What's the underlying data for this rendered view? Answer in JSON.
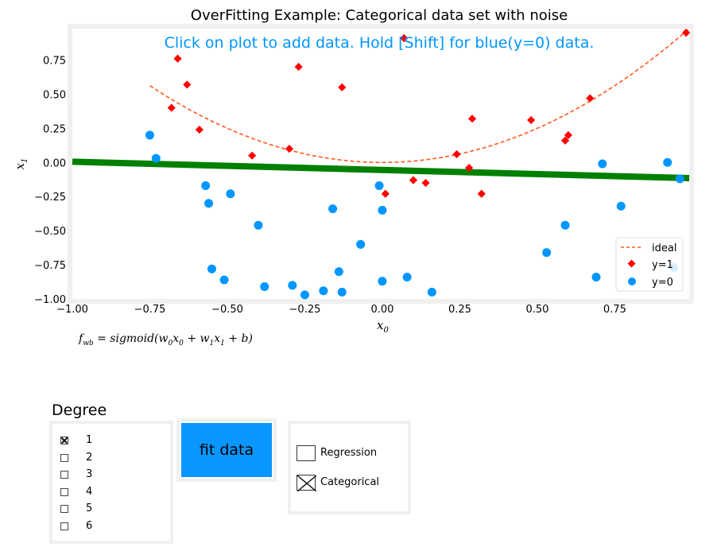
{
  "chart_data": {
    "type": "scatter",
    "title": "OverFitting Example: Categorical data set with noise",
    "instruction": "Click on plot to add data. Hold [Shift] for blue(y=0) data.",
    "xlabel": "x",
    "xlabel_sub": "0",
    "ylabel": "x",
    "ylabel_sub": "1",
    "xlim": [
      -1.0,
      0.99
    ],
    "ylim": [
      -1.0,
      0.98
    ],
    "xticks": [
      -1.0,
      -0.75,
      -0.5,
      -0.25,
      0.0,
      0.25,
      0.5,
      0.75
    ],
    "xtick_labels": [
      "−1.00",
      "−0.75",
      "−0.50",
      "−0.25",
      "0.00",
      "0.25",
      "0.50",
      "0.75"
    ],
    "yticks": [
      -1.0,
      -0.75,
      -0.5,
      -0.25,
      0.0,
      0.25,
      0.5,
      0.75
    ],
    "ytick_labels": [
      "−1.00",
      "−0.75",
      "−0.50",
      "−0.25",
      "0.00",
      "0.25",
      "0.50",
      "0.75"
    ],
    "grid": false,
    "legend": {
      "placement": "lower-right",
      "entries": [
        "ideal",
        "y=1",
        "y=0"
      ]
    },
    "ideal_curve": {
      "name": "ideal",
      "equation": "x1 = x0^2",
      "x_range": [
        -0.75,
        0.99
      ]
    },
    "decision_boundary": {
      "name": "fit",
      "x": [
        -1.0,
        0.99
      ],
      "y": [
        0.005,
        -0.115
      ]
    },
    "series": [
      {
        "name": "y=1",
        "marker": "diamond",
        "color": "#ff0000",
        "points": [
          [
            -0.66,
            0.76
          ],
          [
            -0.63,
            0.57
          ],
          [
            -0.68,
            0.4
          ],
          [
            -0.59,
            0.24
          ],
          [
            -0.27,
            0.7
          ],
          [
            -0.13,
            0.55
          ],
          [
            -0.42,
            0.05
          ],
          [
            -0.3,
            0.1
          ],
          [
            0.07,
            0.91
          ],
          [
            0.29,
            0.32
          ],
          [
            0.48,
            0.31
          ],
          [
            0.67,
            0.47
          ],
          [
            0.6,
            0.2
          ],
          [
            0.59,
            0.16
          ],
          [
            0.24,
            0.06
          ],
          [
            0.28,
            -0.04
          ],
          [
            0.1,
            -0.13
          ],
          [
            0.14,
            -0.15
          ],
          [
            0.01,
            -0.23
          ],
          [
            0.32,
            -0.23
          ],
          [
            0.98,
            0.95
          ]
        ]
      },
      {
        "name": "y=0",
        "marker": "circle",
        "color": "#0096ff",
        "points": [
          [
            -0.75,
            0.2
          ],
          [
            -0.73,
            0.03
          ],
          [
            -0.57,
            -0.17
          ],
          [
            -0.56,
            -0.3
          ],
          [
            -0.49,
            -0.23
          ],
          [
            -0.4,
            -0.46
          ],
          [
            -0.55,
            -0.78
          ],
          [
            -0.51,
            -0.86
          ],
          [
            -0.38,
            -0.91
          ],
          [
            -0.29,
            -0.9
          ],
          [
            -0.25,
            -0.97
          ],
          [
            -0.19,
            -0.94
          ],
          [
            -0.14,
            -0.8
          ],
          [
            -0.13,
            -0.95
          ],
          [
            -0.16,
            -0.34
          ],
          [
            -0.07,
            -0.6
          ],
          [
            -0.01,
            -0.17
          ],
          [
            0.0,
            -0.35
          ],
          [
            0.0,
            -0.87
          ],
          [
            0.08,
            -0.84
          ],
          [
            0.16,
            -0.95
          ],
          [
            0.53,
            -0.66
          ],
          [
            0.59,
            -0.46
          ],
          [
            0.69,
            -0.84
          ],
          [
            0.71,
            -0.01
          ],
          [
            0.77,
            -0.32
          ],
          [
            0.92,
            0.0
          ],
          [
            0.96,
            -0.12
          ],
          [
            0.94,
            -0.77
          ]
        ]
      }
    ]
  },
  "formula": {
    "lhs": "f",
    "lhs_sub": "wb",
    "rhs_prefix": " = sigmoid(w",
    "w0_sub": "0",
    "x0": "x",
    "x0_sub": "0",
    "plus1": " + w",
    "w1_sub": "1",
    "x1": "x",
    "x1_sub": "1",
    "rhs_suffix": " + b)"
  },
  "controls": {
    "degree_title": "Degree",
    "degrees": [
      {
        "label": "1",
        "checked": true
      },
      {
        "label": "2",
        "checked": false
      },
      {
        "label": "3",
        "checked": false
      },
      {
        "label": "4",
        "checked": false
      },
      {
        "label": "5",
        "checked": false
      },
      {
        "label": "6",
        "checked": false
      }
    ],
    "fit_button": "fit data",
    "modes": [
      {
        "label": "Regression",
        "checked": false
      },
      {
        "label": "Categorical",
        "checked": true
      }
    ]
  },
  "colors": {
    "ideal": "#ff5a1e",
    "fit": "#008000",
    "positive": "#ff0000",
    "negative": "#0096ff",
    "button": "#0a96ff",
    "instruction": "#0096ff",
    "frame": "#f0f0f0"
  }
}
